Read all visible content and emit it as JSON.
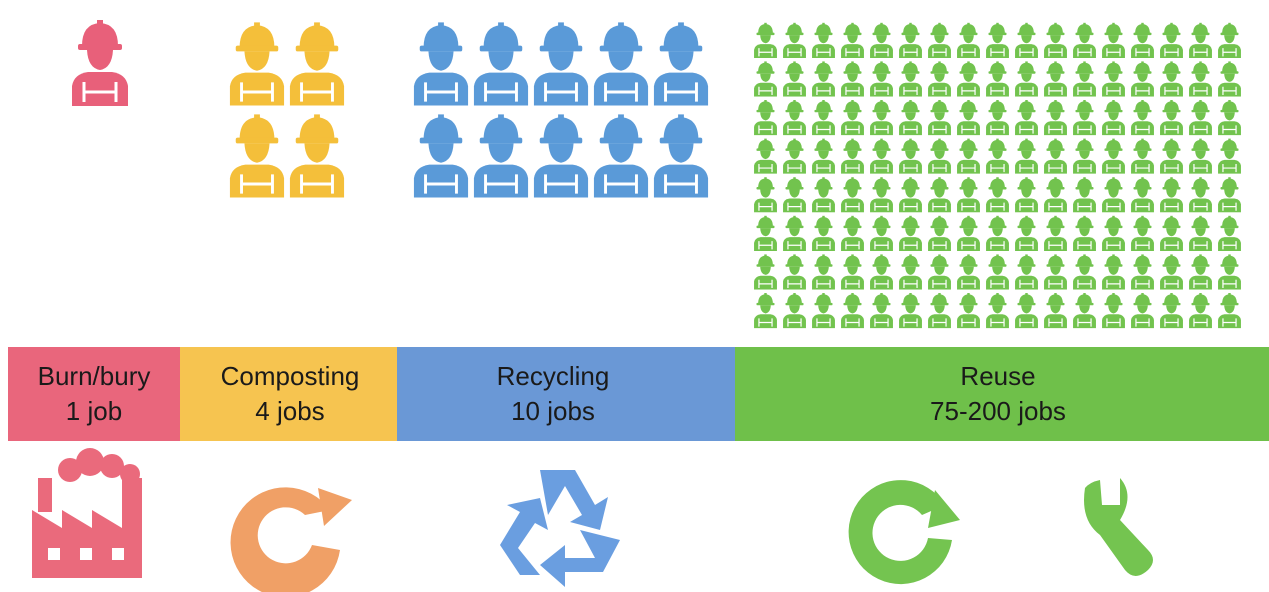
{
  "sections": [
    {
      "label": "Burn/bury",
      "jobs": "1 job"
    },
    {
      "label": "Composting",
      "jobs": "4 jobs"
    },
    {
      "label": "Recycling",
      "jobs": "10 jobs"
    },
    {
      "label": "Reuse",
      "jobs": "75-200 jobs"
    }
  ]
}
